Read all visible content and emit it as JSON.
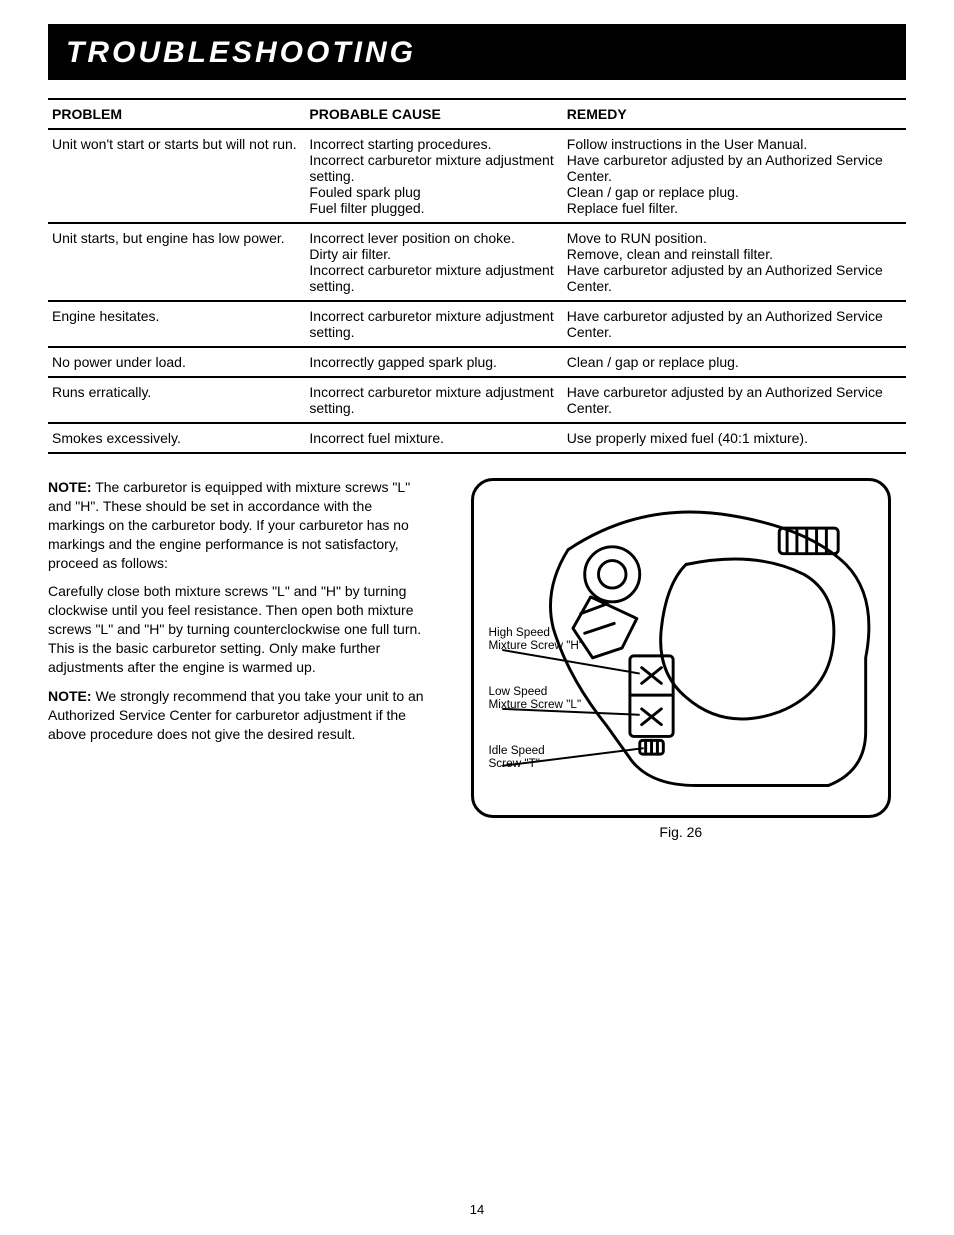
{
  "title": "TROUBLESHOOTING",
  "table": {
    "headers": [
      "PROBLEM",
      "PROBABLE CAUSE",
      "REMEDY"
    ],
    "rows": [
      {
        "problem": "Unit won't start or starts but will not run.",
        "cause": "Incorrect starting procedures.\nIncorrect carburetor mixture adjustment setting.\nFouled spark plug\nFuel filter plugged.",
        "remedy": "Follow instructions in the User Manual.\nHave carburetor adjusted by an Authorized Service Center.\nClean / gap or replace plug.\nReplace fuel filter."
      },
      {
        "problem": "Unit starts, but engine has low power.",
        "cause": "Incorrect lever position on choke.\nDirty air filter.\nIncorrect carburetor mixture adjustment setting.",
        "remedy": "Move to RUN position.\nRemove, clean and reinstall filter.\nHave carburetor adjusted by an Authorized Service Center."
      },
      {
        "problem": "Engine hesitates.",
        "cause": "Incorrect carburetor mixture adjustment setting.",
        "remedy": "Have carburetor adjusted by an Authorized Service Center."
      },
      {
        "problem": "No power under load.",
        "cause": "Incorrectly gapped spark plug.",
        "remedy": "Clean / gap or replace plug."
      },
      {
        "problem": "Runs erratically.",
        "cause": "Incorrect carburetor mixture adjustment setting.",
        "remedy": "Have carburetor adjusted by an Authorized Service Center."
      },
      {
        "problem": "Smokes excessively.",
        "cause": "Incorrect fuel mixture.",
        "remedy": "Use properly mixed fuel (40:1 mixture)."
      }
    ]
  },
  "notes": {
    "p1_bold": "NOTE:",
    "p1": " The carburetor is equipped with mixture screws \"L\" and \"H\". These should be set in accordance with the markings on the carburetor body. If your carburetor has no markings and the engine performance is not satisfactory, proceed as follows:",
    "p2": "Carefully close both mixture screws \"L\" and \"H\" by turning clockwise until you feel resistance. Then open both mixture screws \"L\" and \"H\" by turning counterclockwise one full turn. This is the basic carburetor setting. Only make further adjustments after the engine is warmed up.",
    "p3_bold": "NOTE:",
    "p3": " We strongly recommend that you take your unit to an Authorized Service Center for carburetor adjustment if the above procedure does not give the desired result."
  },
  "figure": {
    "label_high": "High Speed Mixture Screw \"H\"",
    "label_low": "Low Speed Mixture Screw \"L\"",
    "label_idle": "Idle Speed Screw \"T\"",
    "caption": "Fig. 26"
  },
  "page_number": "14"
}
